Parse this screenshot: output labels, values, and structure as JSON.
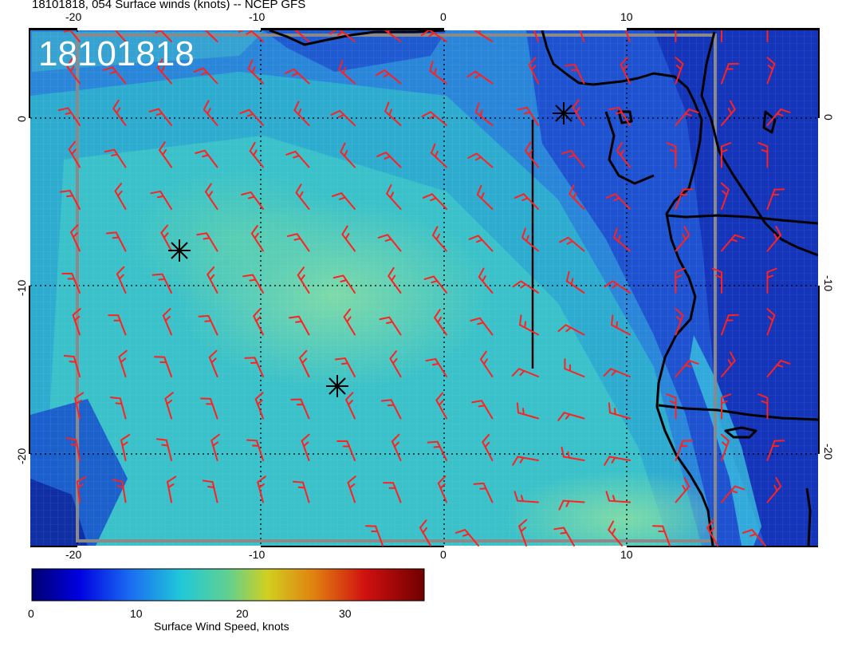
{
  "header": {
    "title": "18101818, 054 Surface winds (knots) -- NCEP GFS"
  },
  "map": {
    "stamp": "18101818",
    "lon_ticks_top": [
      "-20",
      "-10",
      "0",
      "10"
    ],
    "lon_ticks_bottom": [
      "-20",
      "-10",
      "0",
      "10"
    ],
    "lat_ticks_left": [
      "0",
      "-10",
      "-20"
    ],
    "lat_ticks_right": [
      "0",
      "-10",
      "-20"
    ],
    "markers": [
      {
        "name": "storm-marker-1"
      },
      {
        "name": "storm-marker-2"
      },
      {
        "name": "storm-marker-3"
      }
    ],
    "colors": {
      "barb": "#ff2020",
      "coast": "#000000",
      "ocean_low": "#1a3dd6",
      "ocean_mid": "#2fb6c8",
      "ocean_high": "#7ad0a0"
    }
  },
  "colorbar": {
    "ticks": [
      "0",
      "10",
      "20",
      "30"
    ],
    "label": "Surface Wind Speed, knots",
    "stops": [
      "#000070",
      "#0000e0",
      "#1a6cf0",
      "#20c8d8",
      "#60d090",
      "#d0d020",
      "#e08010",
      "#d01010",
      "#700000"
    ]
  }
}
